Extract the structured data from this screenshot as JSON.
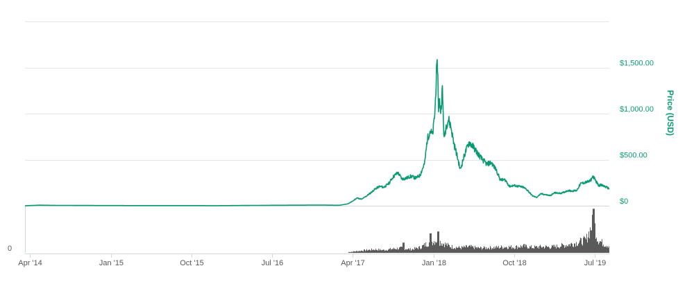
{
  "chart_data": {
    "type": "line",
    "title": "",
    "xlabel": "",
    "ylabel": "Price (USD)",
    "x_range": [
      "2014-03-15",
      "2019-08-20"
    ],
    "ylim": [
      0,
      2000
    ],
    "y_ticks": [
      0,
      500,
      1000,
      1500
    ],
    "y_tick_labels": [
      "$0",
      "$500.00",
      "$1,000.00",
      "$1,500.00"
    ],
    "grid": true,
    "legend": "none",
    "x_ticks": [
      {
        "date": "2014-04-01",
        "label": "Apr '14"
      },
      {
        "date": "2015-01-01",
        "label": "Jan '15"
      },
      {
        "date": "2015-10-01",
        "label": "Oct '15"
      },
      {
        "date": "2016-07-01",
        "label": "Jul '16"
      },
      {
        "date": "2017-04-01",
        "label": "Apr '17"
      },
      {
        "date": "2018-01-01",
        "label": "Jan '18"
      },
      {
        "date": "2018-10-01",
        "label": "Oct '18"
      },
      {
        "date": "2019-07-01",
        "label": "Jul '19"
      }
    ],
    "series": [
      {
        "color": "#0a9a73",
        "points": [
          [
            "2014-03-15",
            0
          ],
          [
            "2014-05-01",
            6
          ],
          [
            "2014-07-01",
            4
          ],
          [
            "2015-01-01",
            2
          ],
          [
            "2016-01-01",
            1
          ],
          [
            "2016-07-01",
            5
          ],
          [
            "2016-12-15",
            7
          ],
          [
            "2017-02-15",
            5
          ],
          [
            "2017-03-15",
            20
          ],
          [
            "2017-04-01",
            50
          ],
          [
            "2017-04-15",
            85
          ],
          [
            "2017-05-01",
            70
          ],
          [
            "2017-05-15",
            100
          ],
          [
            "2017-06-01",
            140
          ],
          [
            "2017-06-15",
            180
          ],
          [
            "2017-07-01",
            210
          ],
          [
            "2017-07-15",
            200
          ],
          [
            "2017-08-01",
            240
          ],
          [
            "2017-08-15",
            310
          ],
          [
            "2017-09-01",
            360
          ],
          [
            "2017-09-15",
            290
          ],
          [
            "2017-10-01",
            300
          ],
          [
            "2017-10-15",
            320
          ],
          [
            "2017-11-01",
            300
          ],
          [
            "2017-11-15",
            330
          ],
          [
            "2017-12-01",
            460
          ],
          [
            "2017-12-10",
            720
          ],
          [
            "2017-12-20",
            820
          ],
          [
            "2017-12-28",
            760
          ],
          [
            "2018-01-05",
            1020
          ],
          [
            "2018-01-10",
            1430
          ],
          [
            "2018-01-14",
            1540
          ],
          [
            "2018-01-17",
            1050
          ],
          [
            "2018-01-20",
            1150
          ],
          [
            "2018-01-25",
            1020
          ],
          [
            "2018-01-30",
            1280
          ],
          [
            "2018-02-05",
            720
          ],
          [
            "2018-02-12",
            870
          ],
          [
            "2018-02-20",
            940
          ],
          [
            "2018-02-28",
            860
          ],
          [
            "2018-03-10",
            680
          ],
          [
            "2018-03-20",
            560
          ],
          [
            "2018-04-01",
            390
          ],
          [
            "2018-04-15",
            550
          ],
          [
            "2018-05-01",
            690
          ],
          [
            "2018-05-15",
            640
          ],
          [
            "2018-06-01",
            560
          ],
          [
            "2018-06-15",
            500
          ],
          [
            "2018-07-01",
            450
          ],
          [
            "2018-07-15",
            470
          ],
          [
            "2018-08-01",
            390
          ],
          [
            "2018-08-15",
            280
          ],
          [
            "2018-09-01",
            280
          ],
          [
            "2018-09-15",
            210
          ],
          [
            "2018-10-01",
            220
          ],
          [
            "2018-10-15",
            210
          ],
          [
            "2018-11-01",
            200
          ],
          [
            "2018-11-15",
            170
          ],
          [
            "2018-12-01",
            110
          ],
          [
            "2018-12-15",
            90
          ],
          [
            "2019-01-01",
            130
          ],
          [
            "2019-01-15",
            120
          ],
          [
            "2019-02-01",
            110
          ],
          [
            "2019-02-15",
            140
          ],
          [
            "2019-03-01",
            135
          ],
          [
            "2019-03-15",
            140
          ],
          [
            "2019-04-01",
            165
          ],
          [
            "2019-04-15",
            160
          ],
          [
            "2019-05-01",
            165
          ],
          [
            "2019-05-15",
            240
          ],
          [
            "2019-06-01",
            255
          ],
          [
            "2019-06-15",
            265
          ],
          [
            "2019-06-26",
            320
          ],
          [
            "2019-07-01",
            290
          ],
          [
            "2019-07-15",
            220
          ],
          [
            "2019-07-20",
            225
          ],
          [
            "2019-08-01",
            215
          ],
          [
            "2019-08-10",
            200
          ],
          [
            "2019-08-20",
            185
          ]
        ]
      }
    ],
    "volume": {
      "color": "#5a5a5a",
      "y_tick_labels": [
        "0"
      ],
      "samples": [
        [
          "2017-03-15",
          0.02
        ],
        [
          "2017-04-15",
          0.05
        ],
        [
          "2017-05-15",
          0.08
        ],
        [
          "2017-06-15",
          0.1
        ],
        [
          "2017-07-15",
          0.08
        ],
        [
          "2017-08-15",
          0.12
        ],
        [
          "2017-09-15",
          0.14
        ],
        [
          "2017-10-15",
          0.1
        ],
        [
          "2017-11-15",
          0.16
        ],
        [
          "2017-12-15",
          0.3
        ],
        [
          "2018-01-10",
          0.38
        ],
        [
          "2018-02-01",
          0.28
        ],
        [
          "2018-03-01",
          0.18
        ],
        [
          "2018-04-01",
          0.15
        ],
        [
          "2018-05-01",
          0.18
        ],
        [
          "2018-06-01",
          0.14
        ],
        [
          "2018-07-01",
          0.15
        ],
        [
          "2018-08-01",
          0.16
        ],
        [
          "2018-09-01",
          0.18
        ],
        [
          "2018-10-01",
          0.17
        ],
        [
          "2018-11-01",
          0.2
        ],
        [
          "2018-12-01",
          0.16
        ],
        [
          "2019-01-01",
          0.18
        ],
        [
          "2019-02-01",
          0.17
        ],
        [
          "2019-03-01",
          0.2
        ],
        [
          "2019-04-01",
          0.24
        ],
        [
          "2019-05-01",
          0.3
        ],
        [
          "2019-06-01",
          0.38
        ],
        [
          "2019-06-27",
          0.95
        ],
        [
          "2019-07-10",
          0.4
        ],
        [
          "2019-08-01",
          0.26
        ],
        [
          "2019-08-20",
          0.2
        ]
      ],
      "spikes": [
        [
          "2017-12-20",
          0.42
        ],
        [
          "2018-01-16",
          0.46
        ],
        [
          "2017-09-20",
          0.22
        ],
        [
          "2019-06-27",
          0.95
        ]
      ]
    }
  }
}
